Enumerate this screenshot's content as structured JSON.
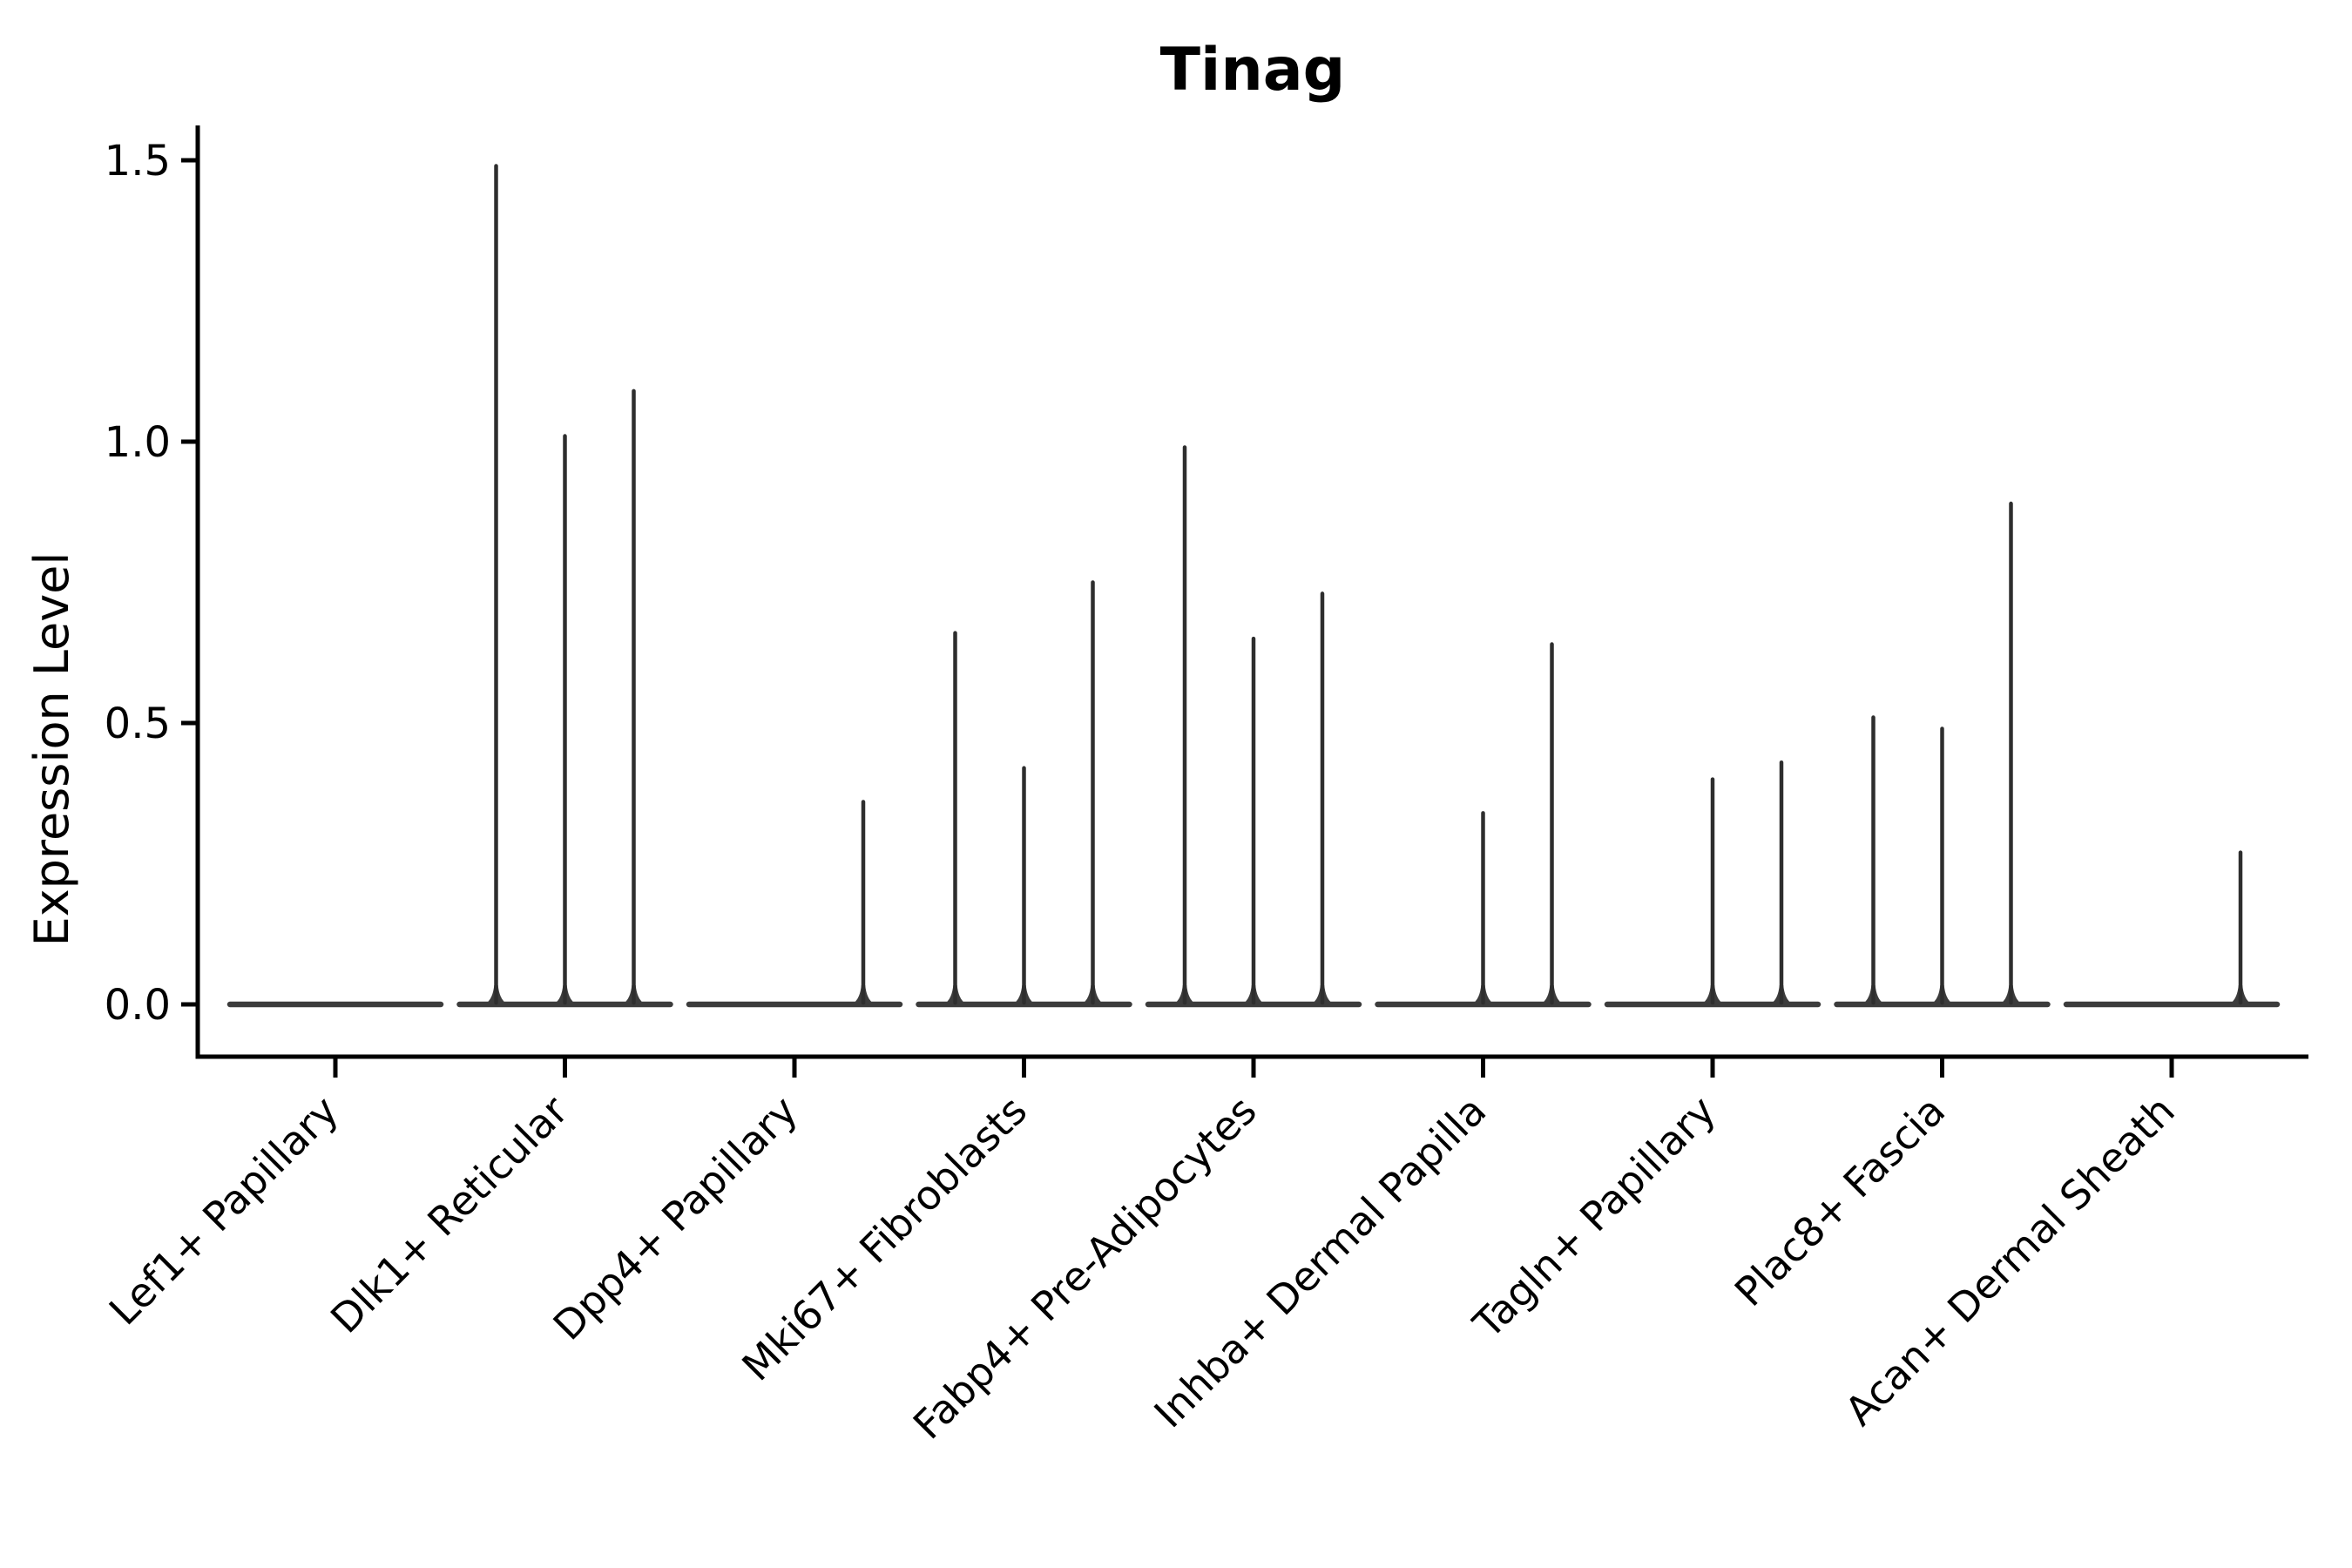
{
  "chart_data": {
    "type": "violin",
    "title": "Tinag",
    "ylabel": "Expression Level",
    "xlabel": "",
    "grid": false,
    "legend_position": "none",
    "ylim": [
      0,
      1.55
    ],
    "yticks": [
      0,
      0.5,
      1.0,
      1.5
    ],
    "ytick_labels": [
      "0.0",
      "0.5",
      "1.0",
      "1.5"
    ],
    "violins_per_group": 3,
    "categories": [
      "Lef1+ Papillary",
      "Dlk1+ Reticular",
      "Dpp4+ Papillary",
      "Mki67+ Fibroblasts",
      "Fabp4+ Pre-Adipocytes",
      "Inhba+ Dermal Papilla",
      "Tagln+ Papillary",
      "Plac8+ Fascia",
      "Acan+ Dermal Sheath"
    ],
    "series": [
      {
        "name": "Lef1+ Papillary",
        "max_expression": [
          0,
          0,
          0
        ]
      },
      {
        "name": "Dlk1+ Reticular",
        "max_expression": [
          1.49,
          1.01,
          1.09
        ]
      },
      {
        "name": "Dpp4+ Papillary",
        "max_expression": [
          0,
          0,
          0.36
        ]
      },
      {
        "name": "Mki67+ Fibroblasts",
        "max_expression": [
          0.66,
          0.42,
          0.75
        ]
      },
      {
        "name": "Fabp4+ Pre-Adipocytes",
        "max_expression": [
          0.99,
          0.65,
          0.73
        ]
      },
      {
        "name": "Inhba+ Dermal Papilla",
        "max_expression": [
          0,
          0.34,
          0.64
        ]
      },
      {
        "name": "Tagln+ Papillary",
        "max_expression": [
          0,
          0.4,
          0.43
        ]
      },
      {
        "name": "Plac8+ Fascia",
        "max_expression": [
          0.51,
          0.49,
          0.89
        ]
      },
      {
        "name": "Acan+ Dermal Sheath",
        "max_expression": [
          0,
          0,
          0.27
        ]
      }
    ],
    "colors": {
      "violin_stroke": "#2e2e2e",
      "baseline": "#3c3c3c",
      "axis": "#000000",
      "background": "#ffffff"
    }
  }
}
